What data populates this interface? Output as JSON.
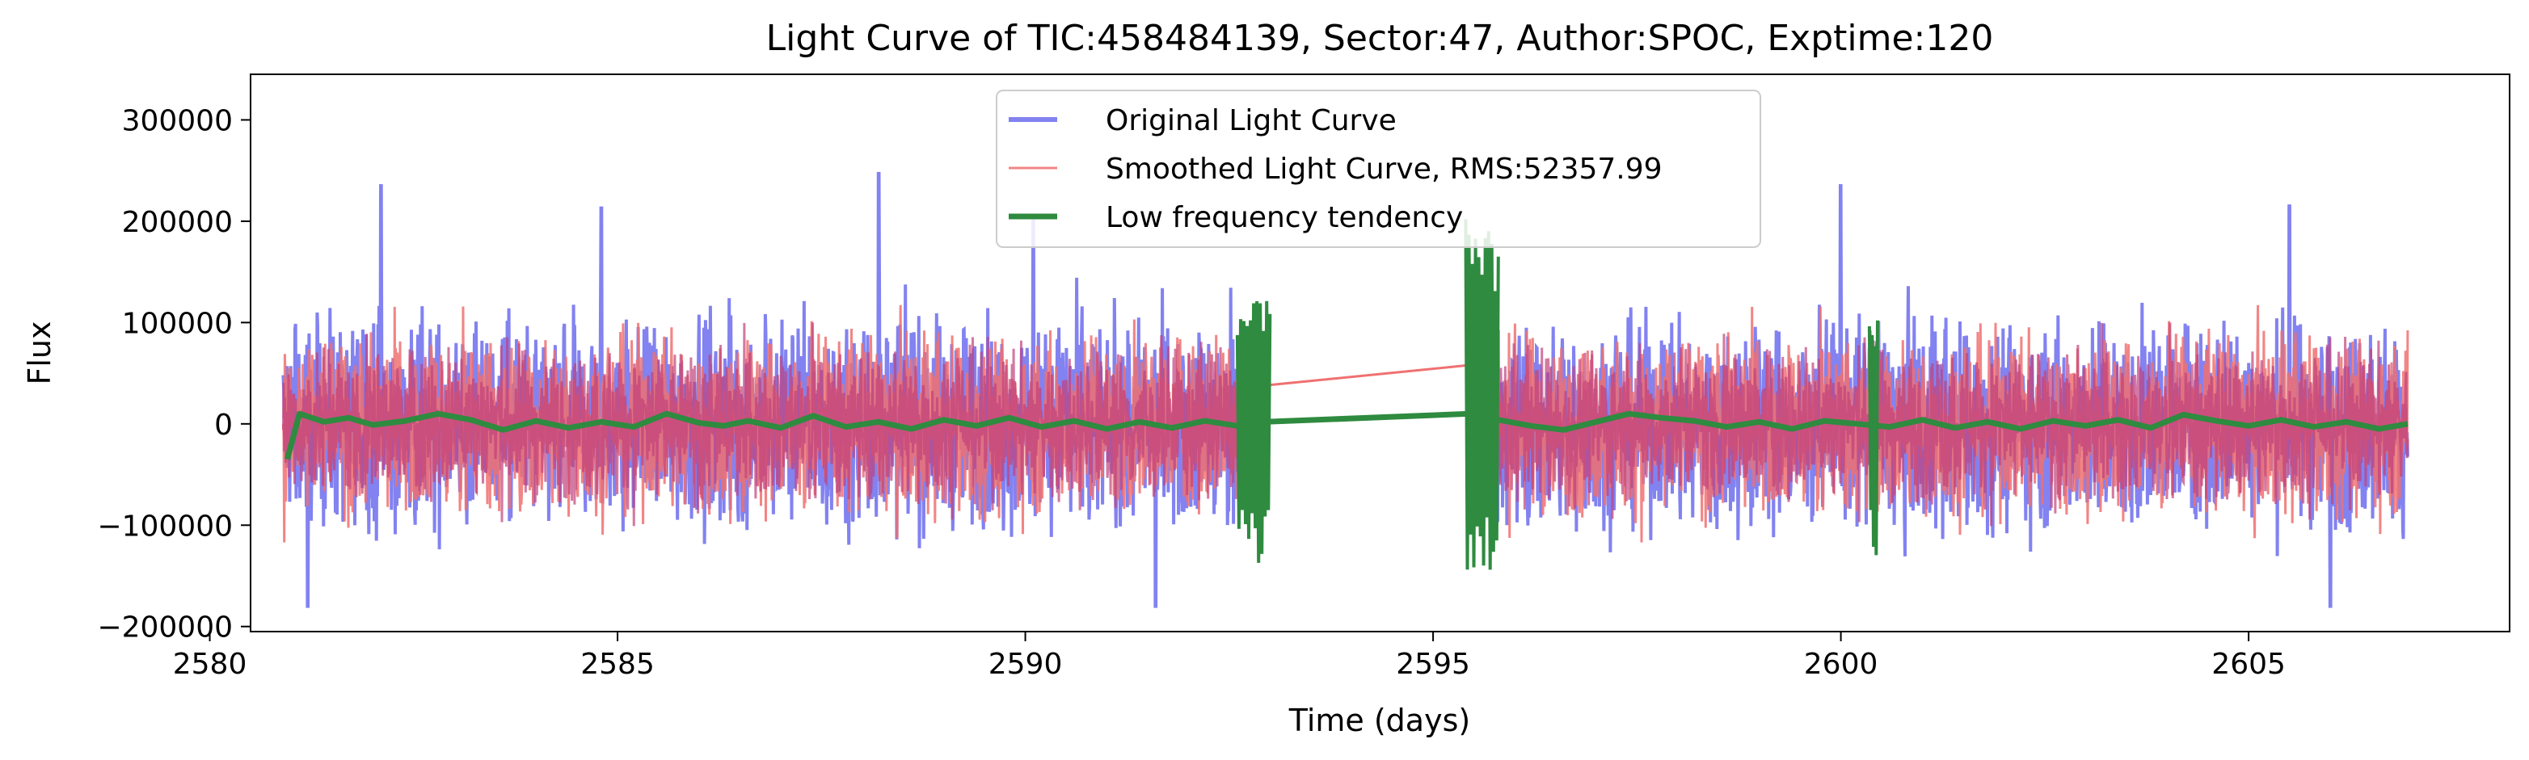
{
  "chart_data": {
    "type": "line",
    "title": "Light Curve of TIC:458484139, Sector:47, Author:SPOC, Exptime:120",
    "xlabel": "Time (days)",
    "ylabel": "Flux",
    "xlim": [
      2580.5,
      2608.2
    ],
    "ylim": [
      -205000,
      345000
    ],
    "xticks": [
      2580,
      2585,
      2590,
      2595,
      2600,
      2605
    ],
    "xtick_labels": [
      "2580",
      "2585",
      "2590",
      "2595",
      "2600",
      "2605"
    ],
    "yticks": [
      -200000,
      -100000,
      0,
      100000,
      200000,
      300000
    ],
    "ytick_labels": [
      "−200000",
      "−100000",
      "0",
      "100000",
      "200000",
      "300000"
    ],
    "grid": false,
    "legend_position": "upper center",
    "data_gap": [
      2592.95,
      2595.45
    ],
    "segments": [
      {
        "x_start": 2580.9,
        "x_end": 2592.75
      },
      {
        "x_start": 2595.7,
        "x_end": 2606.95
      }
    ],
    "series": [
      {
        "name": "Original Light Curve",
        "color": "#7b7bf0",
        "style": "dense oscillation, band about −110000 to +110000 with spikes to 247000 and −180000",
        "envelope_max": 247000,
        "envelope_min": -180000,
        "notable_peaks": [
          {
            "x": 2582.1,
            "y": 235000
          },
          {
            "x": 2584.8,
            "y": 213000
          },
          {
            "x": 2588.2,
            "y": 247000
          },
          {
            "x": 2590.1,
            "y": 202000
          },
          {
            "x": 2600.0,
            "y": 235000
          },
          {
            "x": 2605.5,
            "y": 215000
          }
        ],
        "notable_troughs": [
          {
            "x": 2581.2,
            "y": -180000
          },
          {
            "x": 2591.6,
            "y": -180000
          },
          {
            "x": 2606.0,
            "y": -180000
          }
        ]
      },
      {
        "name": "Smoothed Light Curve, RMS:52357.99",
        "color": "#f07070",
        "style": "dense oscillation overlapping original, thin line bridging the gap",
        "envelope_max": 188000,
        "envelope_min": -170000,
        "gap_bridge": [
          {
            "x": 2592.95,
            "y": 38000
          },
          {
            "x": 2595.45,
            "y": 58000
          }
        ]
      },
      {
        "name": "Low frequency tendency",
        "color": "#2e8b3f",
        "style": "thick slowly varying line near zero with sharp spikes at gap edges",
        "points": [
          {
            "x": 2580.95,
            "y": -35000
          },
          {
            "x": 2581.1,
            "y": 10000
          },
          {
            "x": 2581.4,
            "y": 2000
          },
          {
            "x": 2581.7,
            "y": 6000
          },
          {
            "x": 2582.0,
            "y": -1000
          },
          {
            "x": 2582.4,
            "y": 3000
          },
          {
            "x": 2582.8,
            "y": 10000
          },
          {
            "x": 2583.2,
            "y": 4000
          },
          {
            "x": 2583.6,
            "y": -6000
          },
          {
            "x": 2584.0,
            "y": 3000
          },
          {
            "x": 2584.4,
            "y": -4000
          },
          {
            "x": 2584.8,
            "y": 2000
          },
          {
            "x": 2585.2,
            "y": -3000
          },
          {
            "x": 2585.6,
            "y": 10000
          },
          {
            "x": 2586.0,
            "y": 1000
          },
          {
            "x": 2586.3,
            "y": -2000
          },
          {
            "x": 2586.6,
            "y": 3000
          },
          {
            "x": 2587.0,
            "y": -4000
          },
          {
            "x": 2587.4,
            "y": 8000
          },
          {
            "x": 2587.8,
            "y": -3000
          },
          {
            "x": 2588.2,
            "y": 2000
          },
          {
            "x": 2588.6,
            "y": -5000
          },
          {
            "x": 2589.0,
            "y": 4000
          },
          {
            "x": 2589.4,
            "y": -2000
          },
          {
            "x": 2589.8,
            "y": 6000
          },
          {
            "x": 2590.2,
            "y": -3000
          },
          {
            "x": 2590.6,
            "y": 3000
          },
          {
            "x": 2591.0,
            "y": -5000
          },
          {
            "x": 2591.4,
            "y": 2000
          },
          {
            "x": 2591.8,
            "y": -4000
          },
          {
            "x": 2592.2,
            "y": 3000
          },
          {
            "x": 2592.6,
            "y": -2000
          },
          {
            "x": 2592.95,
            "y": 2000
          },
          {
            "x": 2595.45,
            "y": 10000
          },
          {
            "x": 2595.8,
            "y": 4000
          },
          {
            "x": 2596.2,
            "y": -2000
          },
          {
            "x": 2596.6,
            "y": -6000
          },
          {
            "x": 2597.0,
            "y": 2000
          },
          {
            "x": 2597.4,
            "y": 10000
          },
          {
            "x": 2597.8,
            "y": 6000
          },
          {
            "x": 2598.2,
            "y": 3000
          },
          {
            "x": 2598.6,
            "y": -3000
          },
          {
            "x": 2599.0,
            "y": 2000
          },
          {
            "x": 2599.4,
            "y": -5000
          },
          {
            "x": 2599.8,
            "y": 3000
          },
          {
            "x": 2600.2,
            "y": 0
          },
          {
            "x": 2600.6,
            "y": -3000
          },
          {
            "x": 2601.0,
            "y": 4000
          },
          {
            "x": 2601.4,
            "y": -4000
          },
          {
            "x": 2601.8,
            "y": 2000
          },
          {
            "x": 2602.2,
            "y": -5000
          },
          {
            "x": 2602.6,
            "y": 3000
          },
          {
            "x": 2603.0,
            "y": -2000
          },
          {
            "x": 2603.4,
            "y": 4000
          },
          {
            "x": 2603.8,
            "y": -4000
          },
          {
            "x": 2604.2,
            "y": 9000
          },
          {
            "x": 2604.6,
            "y": 3000
          },
          {
            "x": 2605.0,
            "y": -2000
          },
          {
            "x": 2605.4,
            "y": 4000
          },
          {
            "x": 2605.8,
            "y": -3000
          },
          {
            "x": 2606.2,
            "y": 2000
          },
          {
            "x": 2606.6,
            "y": -5000
          },
          {
            "x": 2606.95,
            "y": 0
          }
        ],
        "edge_spikes": [
          {
            "x_start": 2592.6,
            "x_end": 2593.0,
            "y_min": -140000,
            "y_max": 133000
          },
          {
            "x_start": 2595.4,
            "x_end": 2595.8,
            "y_min": -148000,
            "y_max": 215000
          },
          {
            "x_start": 2600.35,
            "x_end": 2600.45,
            "y_min": -137000,
            "y_max": 118000
          }
        ]
      }
    ]
  }
}
